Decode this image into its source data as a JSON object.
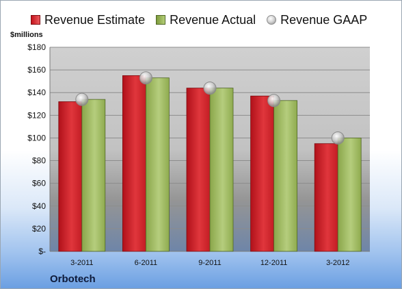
{
  "legend": {
    "estimate": "Revenue Estimate",
    "actual": "Revenue Actual",
    "gaap": "Revenue GAAP"
  },
  "company": "Orbotech",
  "chart_data": {
    "type": "bar",
    "ylabel": "$millions",
    "ylim": [
      0,
      180
    ],
    "y_ticks": [
      0,
      20,
      40,
      60,
      80,
      100,
      120,
      140,
      160,
      180
    ],
    "y_tick_labels": [
      "$-",
      "$20",
      "$40",
      "$60",
      "$80",
      "$100",
      "$120",
      "$140",
      "$160",
      "$180"
    ],
    "categories": [
      "3-2011",
      "6-2011",
      "9-2011",
      "12-2011",
      "3-2012"
    ],
    "series": [
      {
        "name": "Revenue Estimate",
        "values": [
          132,
          155,
          144,
          137,
          95
        ],
        "color": "#d9272e"
      },
      {
        "name": "Revenue Actual",
        "values": [
          134,
          153,
          144,
          133,
          100
        ],
        "color": "#9bbb59"
      },
      {
        "name": "Revenue GAAP",
        "values": [
          134,
          153,
          144,
          133,
          100
        ],
        "color": "#bfbfbf"
      }
    ],
    "grid": true,
    "legend_position": "top"
  }
}
